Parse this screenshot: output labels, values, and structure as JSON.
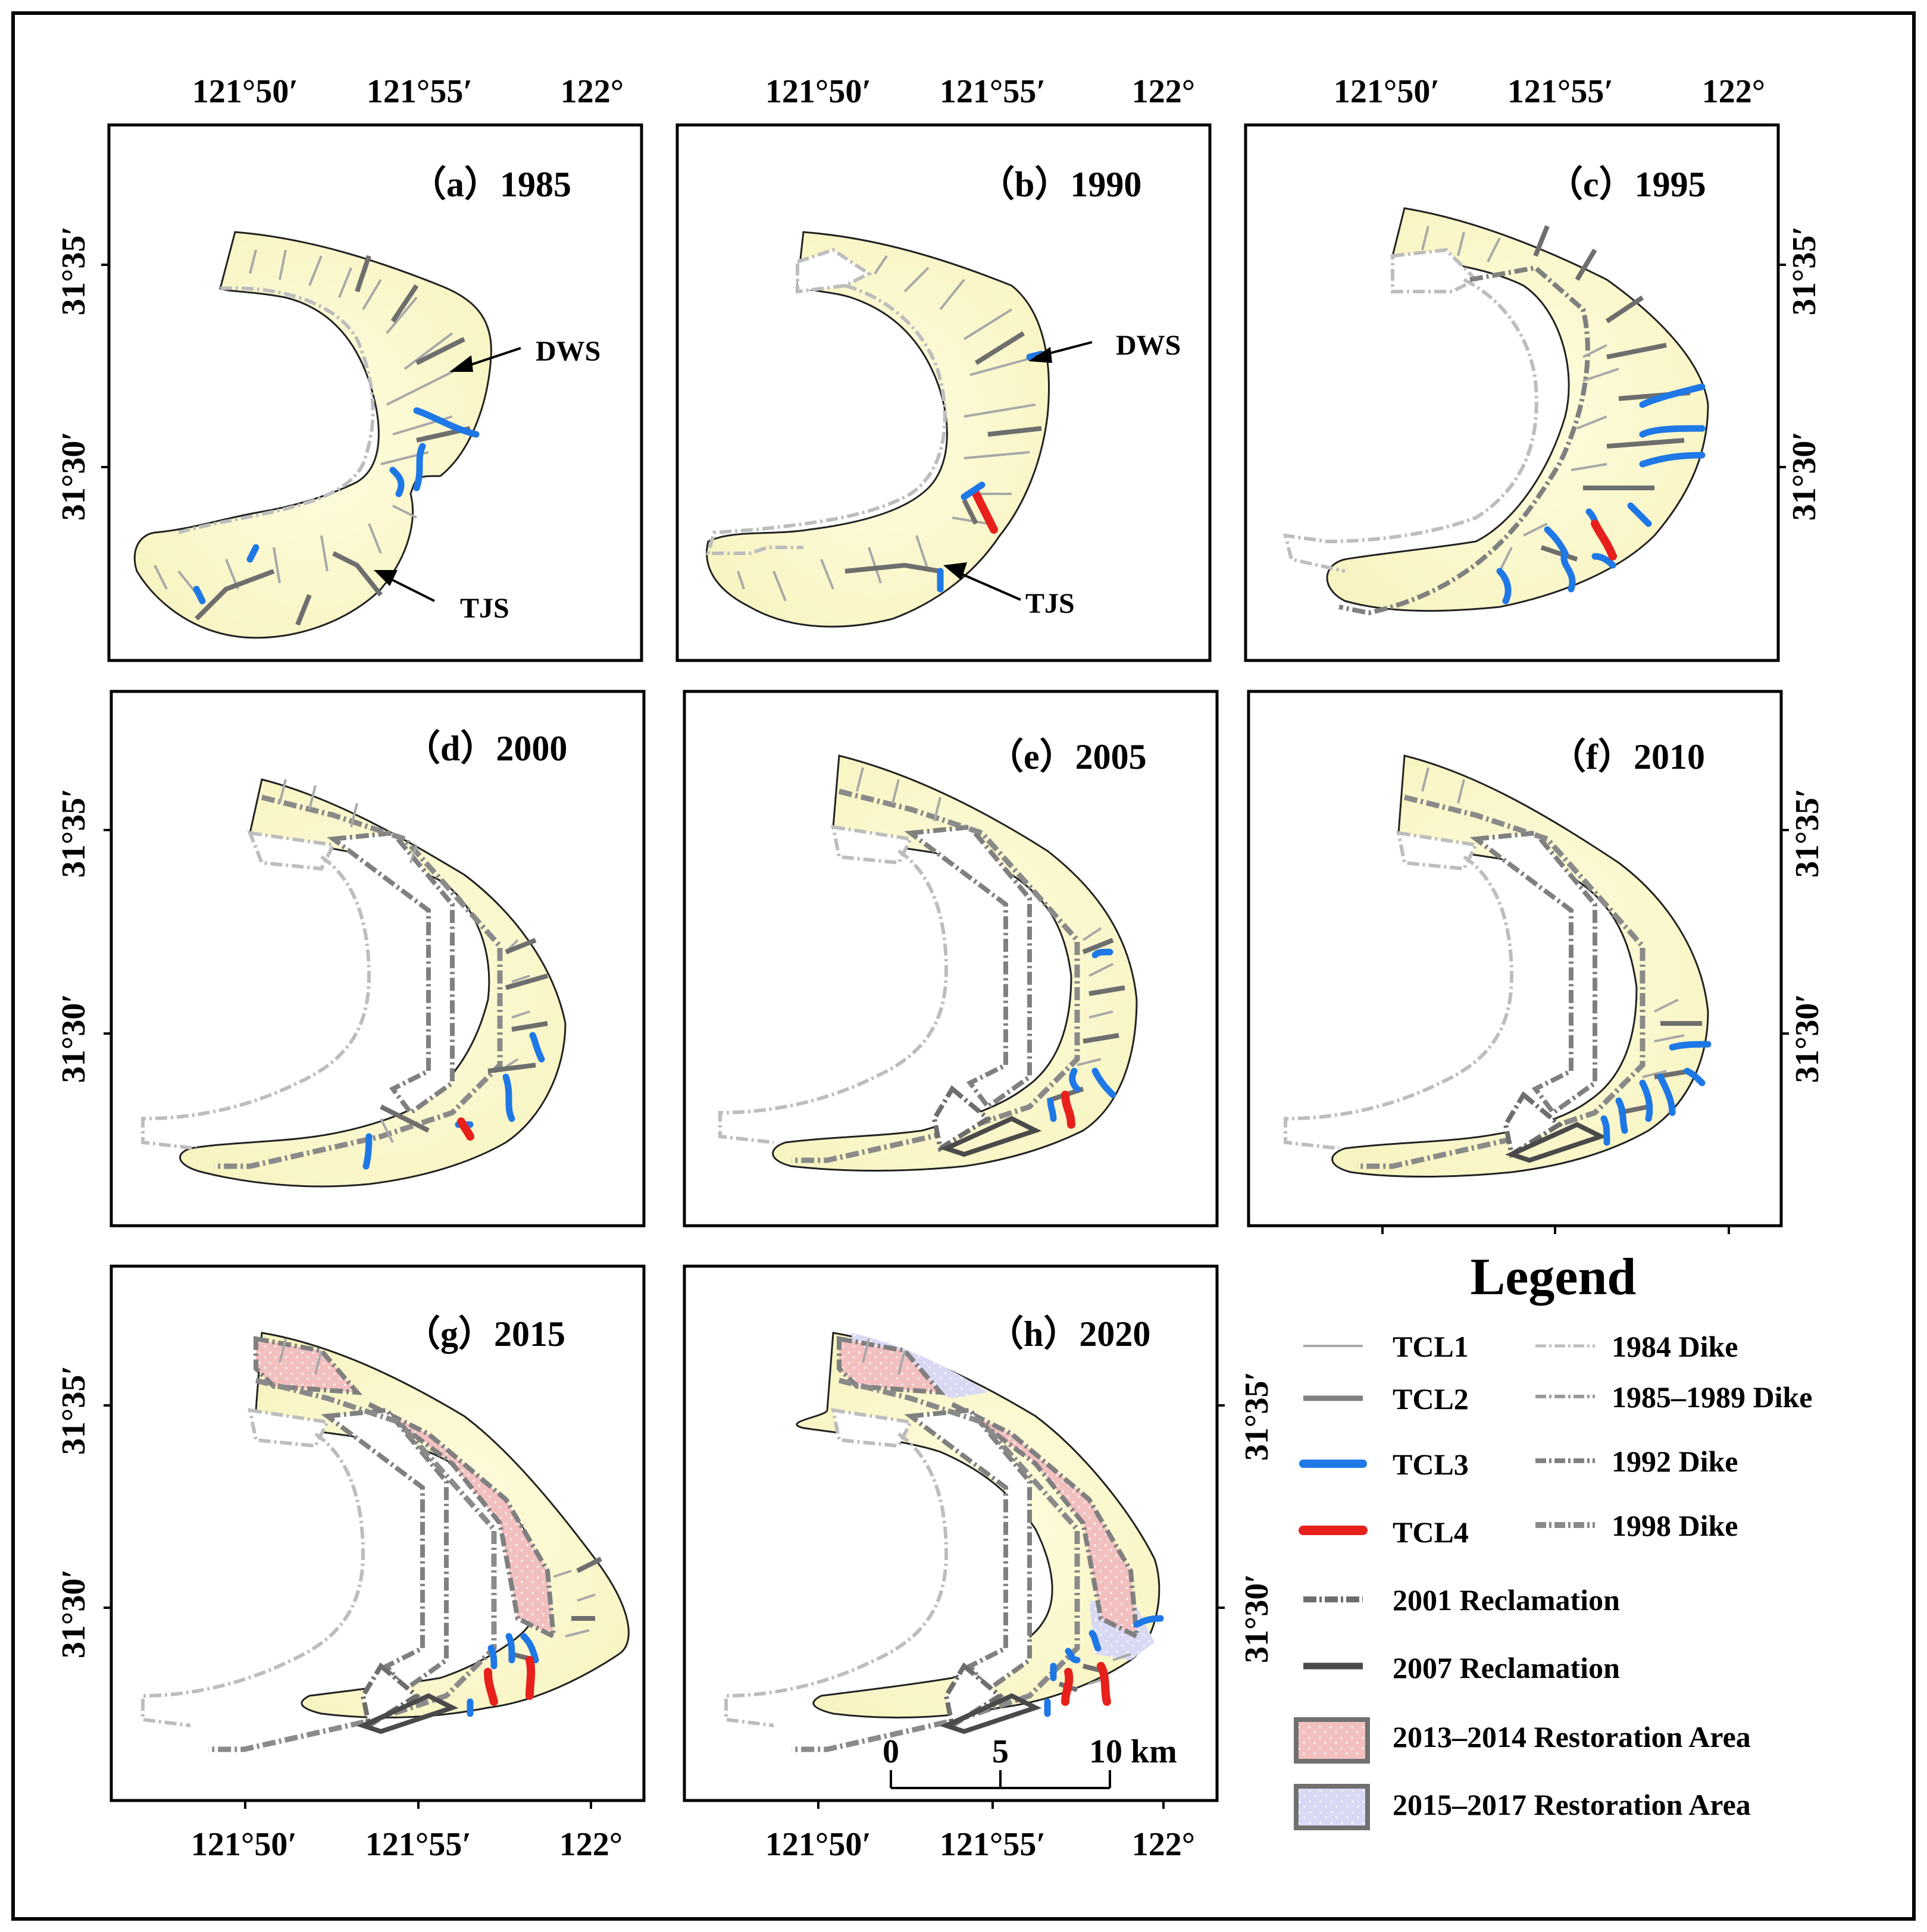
{
  "figure": {
    "panels": [
      {
        "id": "a",
        "label": "（a）1985"
      },
      {
        "id": "b",
        "label": "（b）1990"
      },
      {
        "id": "c",
        "label": "（c）1995"
      },
      {
        "id": "d",
        "label": "（d）2000"
      },
      {
        "id": "e",
        "label": "（e）2005"
      },
      {
        "id": "f",
        "label": "（f）2010"
      },
      {
        "id": "g",
        "label": "（g）2015"
      },
      {
        "id": "h",
        "label": "（h）2020"
      }
    ],
    "lon_labels": [
      "121°50′",
      "121°55′",
      "122°"
    ],
    "lat_labels": [
      "31°35′",
      "31°30′"
    ],
    "annotations": {
      "dws": "DWS",
      "tjs": "TJS"
    },
    "scale_bar": {
      "t0": "0",
      "t5": "5",
      "t10": "10 km"
    }
  },
  "legend": {
    "title": "Legend",
    "tcl1": "TCL1",
    "tcl2": "TCL2",
    "tcl3": "TCL3",
    "tcl4": "TCL4",
    "dike1984": "1984 Dike",
    "dike1985": "1985–1989 Dike",
    "dike1992": "1992 Dike",
    "dike1998": "1998 Dike",
    "rec2001": "2001 Reclamation",
    "rec2007": "2007 Reclamation",
    "rest2013": "2013–2014 Restoration Area",
    "rest2015": "2015–2017 Restoration Area"
  },
  "colors": {
    "tidal_flat": "#fbf9cf",
    "tcl1": "#a8a8a8",
    "tcl2": "#808080",
    "tcl3": "#1e78e6",
    "tcl4": "#e8201c",
    "restoration_2013": "#f3c0c0",
    "restoration_2015": "#d8d8f3",
    "dike": "#8a8a8a"
  }
}
